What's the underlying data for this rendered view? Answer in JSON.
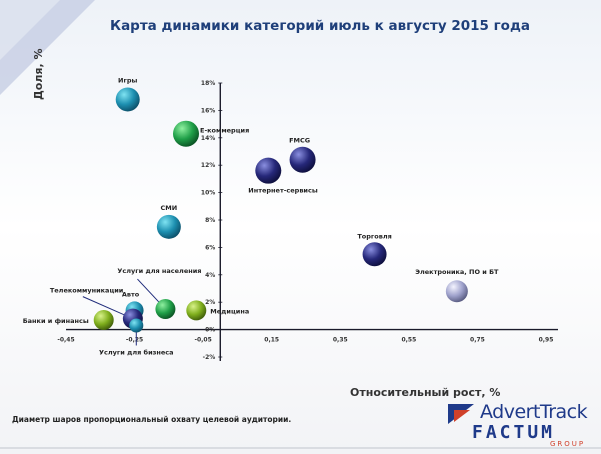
{
  "title": "Карта динамики категорий июль к августу 2015 года",
  "ylabel": "Доля, %",
  "xlabel": "Относительный рост, %",
  "footnote": "Диаметр шаров пропорциональный охвату целевой аудитории.",
  "logo": {
    "line1": "AdvertTrack",
    "line2": "FACTUM",
    "line3": "GROUP"
  },
  "colors": {
    "title": "#1f3f7a",
    "logo_blue": "#1f3a8a",
    "logo_red": "#d0412b"
  },
  "chart_data": {
    "type": "scatter",
    "bubble": true,
    "xlim": [
      -0.45,
      0.95
    ],
    "ylim": [
      -2,
      18
    ],
    "x_ticks": [
      "-0,45",
      "-0,25",
      "-0,05",
      "0,15",
      "0,35",
      "0,55",
      "0,75",
      "0,95"
    ],
    "y_ticks": [
      "-2%",
      "0%",
      "2%",
      "4%",
      "6%",
      "8%",
      "10%",
      "12%",
      "14%",
      "16%",
      "18%"
    ],
    "grid": false,
    "points": [
      {
        "name": "Игры",
        "x": -0.27,
        "y": 16.8,
        "size": 12,
        "color": "teal"
      },
      {
        "name": "E-коммерция",
        "x": -0.1,
        "y": 14.3,
        "size": 13,
        "color": "green"
      },
      {
        "name": "FMCG",
        "x": 0.24,
        "y": 12.4,
        "size": 13,
        "color": "navy"
      },
      {
        "name": "Интернет-сервисы",
        "x": 0.14,
        "y": 11.6,
        "size": 13,
        "color": "navy"
      },
      {
        "name": "СМИ",
        "x": -0.15,
        "y": 7.5,
        "size": 12,
        "color": "teal"
      },
      {
        "name": "Торговля",
        "x": 0.45,
        "y": 5.5,
        "size": 12,
        "color": "navy"
      },
      {
        "name": "Электроника, ПО и БТ",
        "x": 0.69,
        "y": 2.8,
        "size": 11,
        "color": "lavender"
      },
      {
        "name": "Авто",
        "x": -0.25,
        "y": 1.4,
        "size": 9,
        "color": "teal"
      },
      {
        "name": "Услуги для населения",
        "x": -0.16,
        "y": 1.5,
        "size": 10,
        "color": "green"
      },
      {
        "name": "Медицина",
        "x": -0.07,
        "y": 1.4,
        "size": 10,
        "color": "lime"
      },
      {
        "name": "Банки и финансы",
        "x": -0.34,
        "y": 0.7,
        "size": 10,
        "color": "lime"
      },
      {
        "name": "Телекоммуникации",
        "x": -0.255,
        "y": 0.8,
        "size": 10,
        "color": "navy"
      },
      {
        "name": "Услуги для бизнеса",
        "x": -0.245,
        "y": 0.3,
        "size": 7,
        "color": "teal"
      }
    ]
  }
}
